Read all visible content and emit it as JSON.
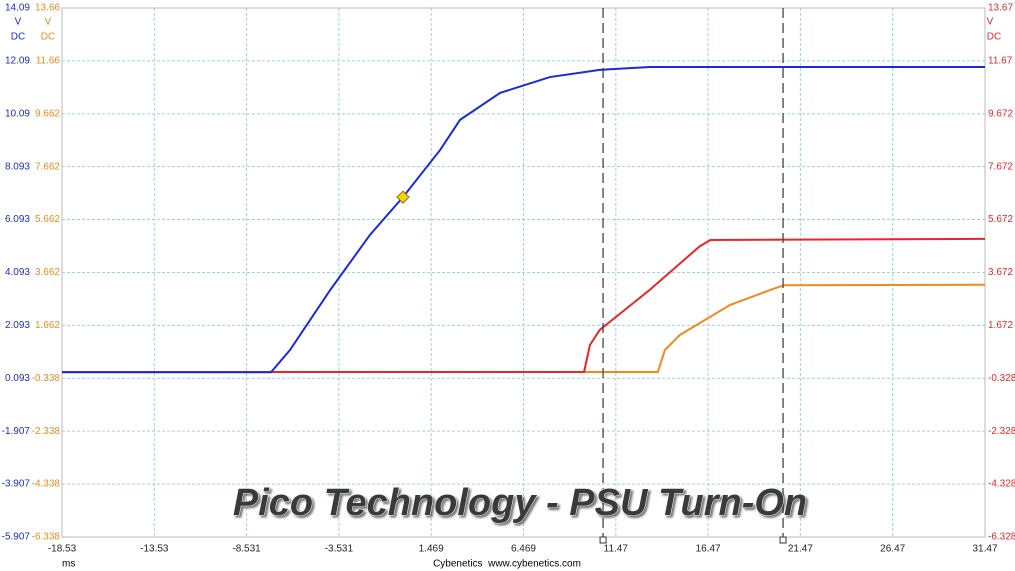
{
  "chart_data": {
    "type": "line",
    "title": "Pico Technology - PSU Turn-On",
    "x_label": "ms",
    "credit": "Cybenetics  www.cybenetics.com",
    "grid": true,
    "xlim": [
      -18.53,
      31.47
    ],
    "xticks": [
      -18.53,
      -13.53,
      -8.531,
      -3.531,
      1.469,
      6.469,
      11.47,
      16.47,
      21.47,
      26.47,
      31.47
    ],
    "ylim": [
      -5.907,
      14.09
    ],
    "yticks": [
      14.09,
      12.09,
      10.09,
      8.093,
      6.093,
      4.093,
      2.093,
      0.093,
      -1.907,
      -3.907,
      -5.907
    ],
    "y_unit": "V",
    "y_coupling": "DC",
    "y_color": "#1a2bd6",
    "y3lim": [
      -6.338,
      13.66
    ],
    "y3ticks": [
      13.66,
      11.66,
      9.662,
      7.662,
      5.662,
      3.662,
      1.662,
      -0.338,
      -2.338,
      -4.338,
      -6.338
    ],
    "y3_unit": "V",
    "y3_coupling": "DC",
    "y3_color": "#f08a1c",
    "y2lim": [
      -6.328,
      13.67
    ],
    "y2ticks": [
      13.67,
      11.67,
      9.672,
      7.672,
      5.672,
      3.672,
      1.672,
      -0.328,
      -2.328,
      -4.328,
      -6.328
    ],
    "y2_unit": "V",
    "y2_coupling": "DC",
    "y2_color": "#e8262a",
    "cursors": [
      10.78,
      20.53
    ],
    "trigger": {
      "x": -0.06,
      "y": 6.94,
      "color": "#f5d40f"
    },
    "series": [
      {
        "color": "#f08a1c",
        "axis": "y3",
        "x": [
          -18.53,
          13.75,
          14.13,
          14.94,
          17.65,
          20.1,
          20.6,
          31.47
        ],
        "values": [
          -0.1,
          -0.1,
          0.73,
          1.3,
          2.43,
          3.07,
          3.18,
          3.2
        ]
      },
      {
        "color": "#e8262a",
        "axis": "y2",
        "x": [
          -18.53,
          9.75,
          10.07,
          10.6,
          13.3,
          16.03,
          16.6,
          31.47
        ],
        "values": [
          -0.09,
          -0.09,
          0.93,
          1.5,
          3.01,
          4.67,
          4.9,
          4.94
        ]
      },
      {
        "color": "#1a2bd6",
        "axis": "y",
        "x": [
          -18.53,
          -7.21,
          -6.18,
          -4.0,
          -1.85,
          -0.06,
          1.95,
          3.03,
          5.2,
          7.9,
          10.6,
          13.3,
          31.47
        ],
        "values": [
          0.32,
          0.32,
          1.16,
          3.43,
          5.51,
          6.94,
          8.72,
          9.86,
          10.88,
          11.48,
          11.75,
          11.86,
          11.86
        ]
      }
    ]
  }
}
